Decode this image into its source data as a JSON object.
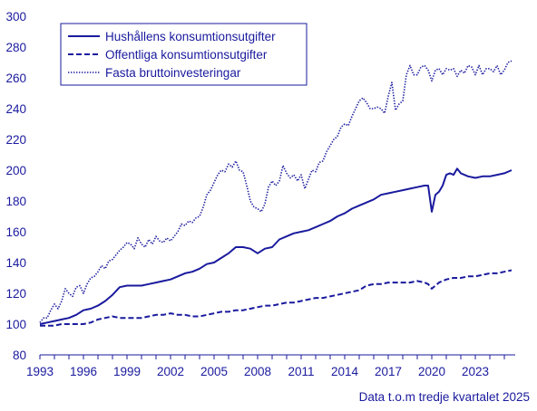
{
  "colors": {
    "series": "#1a1a9e",
    "axis": "#1a1a9e",
    "gridline": "#e6e6e6",
    "legend_border": "#1a1a9e"
  },
  "footnote": "Data t.o.m tredje kvartalet 2025",
  "chart_data": {
    "type": "line",
    "title": "",
    "xlabel": "",
    "ylabel": "",
    "xlim": [
      1993.0,
      2025.75
    ],
    "ylim": [
      80,
      300
    ],
    "y_ticks": [
      80,
      100,
      120,
      140,
      160,
      180,
      200,
      220,
      240,
      260,
      280,
      300
    ],
    "x_ticks": [
      1993,
      1996,
      1999,
      2002,
      2005,
      2008,
      2011,
      2014,
      2017,
      2020,
      2023
    ],
    "grid": false,
    "legend_position": "top-left",
    "series": [
      {
        "name": "Hushållens konsumtionsutgifter",
        "style": "solid",
        "points": [
          [
            1993.0,
            100
          ],
          [
            1993.5,
            101
          ],
          [
            1994.0,
            102
          ],
          [
            1994.5,
            103
          ],
          [
            1995.0,
            104
          ],
          [
            1995.5,
            106
          ],
          [
            1996.0,
            109
          ],
          [
            1996.5,
            110
          ],
          [
            1997.0,
            112
          ],
          [
            1997.5,
            115
          ],
          [
            1998.0,
            119
          ],
          [
            1998.5,
            124
          ],
          [
            1999.0,
            125
          ],
          [
            1999.5,
            125
          ],
          [
            2000.0,
            125
          ],
          [
            2000.5,
            126
          ],
          [
            2001.0,
            127
          ],
          [
            2001.5,
            128
          ],
          [
            2002.0,
            129
          ],
          [
            2002.5,
            131
          ],
          [
            2003.0,
            133
          ],
          [
            2003.5,
            134
          ],
          [
            2004.0,
            136
          ],
          [
            2004.5,
            139
          ],
          [
            2005.0,
            140
          ],
          [
            2005.5,
            143
          ],
          [
            2006.0,
            146
          ],
          [
            2006.5,
            150
          ],
          [
            2007.0,
            150
          ],
          [
            2007.5,
            149
          ],
          [
            2008.0,
            146
          ],
          [
            2008.5,
            149
          ],
          [
            2009.0,
            150
          ],
          [
            2009.5,
            155
          ],
          [
            2010.0,
            157
          ],
          [
            2010.5,
            159
          ],
          [
            2011.0,
            160
          ],
          [
            2011.5,
            161
          ],
          [
            2012.0,
            163
          ],
          [
            2012.5,
            165
          ],
          [
            2013.0,
            167
          ],
          [
            2013.5,
            170
          ],
          [
            2014.0,
            172
          ],
          [
            2014.5,
            175
          ],
          [
            2015.0,
            177
          ],
          [
            2015.5,
            179
          ],
          [
            2016.0,
            181
          ],
          [
            2016.5,
            184
          ],
          [
            2017.0,
            185
          ],
          [
            2017.5,
            186
          ],
          [
            2018.0,
            187
          ],
          [
            2018.5,
            188
          ],
          [
            2019.0,
            189
          ],
          [
            2019.5,
            190
          ],
          [
            2019.75,
            190
          ],
          [
            2020.0,
            173
          ],
          [
            2020.25,
            184
          ],
          [
            2020.5,
            186
          ],
          [
            2020.75,
            190
          ],
          [
            2021.0,
            197
          ],
          [
            2021.25,
            198
          ],
          [
            2021.5,
            197
          ],
          [
            2021.75,
            201
          ],
          [
            2022.0,
            198
          ],
          [
            2022.5,
            196
          ],
          [
            2023.0,
            195
          ],
          [
            2023.5,
            196
          ],
          [
            2024.0,
            196
          ],
          [
            2024.5,
            197
          ],
          [
            2025.0,
            198
          ],
          [
            2025.5,
            200
          ]
        ]
      },
      {
        "name": "Offentliga konsumtionsutgifter",
        "style": "dashed",
        "points": [
          [
            1993.0,
            99
          ],
          [
            1993.5,
            99
          ],
          [
            1994.0,
            99
          ],
          [
            1994.5,
            100
          ],
          [
            1995.0,
            100
          ],
          [
            1995.5,
            100
          ],
          [
            1996.0,
            100
          ],
          [
            1996.5,
            101
          ],
          [
            1997.0,
            103
          ],
          [
            1997.5,
            104
          ],
          [
            1998.0,
            105
          ],
          [
            1998.5,
            104
          ],
          [
            1999.0,
            104
          ],
          [
            1999.5,
            104
          ],
          [
            2000.0,
            104
          ],
          [
            2000.5,
            105
          ],
          [
            2001.0,
            106
          ],
          [
            2001.5,
            106
          ],
          [
            2002.0,
            107
          ],
          [
            2002.5,
            106
          ],
          [
            2003.0,
            106
          ],
          [
            2003.5,
            105
          ],
          [
            2004.0,
            105
          ],
          [
            2004.5,
            106
          ],
          [
            2005.0,
            107
          ],
          [
            2005.5,
            108
          ],
          [
            2006.0,
            108
          ],
          [
            2006.5,
            109
          ],
          [
            2007.0,
            109
          ],
          [
            2007.5,
            110
          ],
          [
            2008.0,
            111
          ],
          [
            2008.5,
            112
          ],
          [
            2009.0,
            112
          ],
          [
            2009.5,
            113
          ],
          [
            2010.0,
            114
          ],
          [
            2010.5,
            114
          ],
          [
            2011.0,
            115
          ],
          [
            2011.5,
            116
          ],
          [
            2012.0,
            117
          ],
          [
            2012.5,
            117
          ],
          [
            2013.0,
            118
          ],
          [
            2013.5,
            119
          ],
          [
            2014.0,
            120
          ],
          [
            2014.5,
            121
          ],
          [
            2015.0,
            122
          ],
          [
            2015.5,
            125
          ],
          [
            2016.0,
            126
          ],
          [
            2016.5,
            126
          ],
          [
            2017.0,
            127
          ],
          [
            2017.5,
            127
          ],
          [
            2018.0,
            127
          ],
          [
            2018.5,
            127
          ],
          [
            2019.0,
            128
          ],
          [
            2019.5,
            127
          ],
          [
            2019.75,
            126
          ],
          [
            2020.0,
            123
          ],
          [
            2020.5,
            127
          ],
          [
            2021.0,
            129
          ],
          [
            2021.5,
            130
          ],
          [
            2022.0,
            130
          ],
          [
            2022.5,
            131
          ],
          [
            2023.0,
            131
          ],
          [
            2023.5,
            132
          ],
          [
            2024.0,
            133
          ],
          [
            2024.5,
            133
          ],
          [
            2025.0,
            134
          ],
          [
            2025.5,
            135
          ]
        ]
      },
      {
        "name": "Fasta bruttoinvesteringar",
        "style": "dotted",
        "points": [
          [
            1993.0,
            101
          ],
          [
            1993.25,
            104
          ],
          [
            1993.5,
            104
          ],
          [
            1993.75,
            109
          ],
          [
            1994.0,
            113
          ],
          [
            1994.25,
            110
          ],
          [
            1994.5,
            115
          ],
          [
            1994.75,
            123
          ],
          [
            1995.0,
            120
          ],
          [
            1995.25,
            118
          ],
          [
            1995.5,
            124
          ],
          [
            1995.75,
            125
          ],
          [
            1996.0,
            120
          ],
          [
            1996.25,
            126
          ],
          [
            1996.5,
            130
          ],
          [
            1996.75,
            131
          ],
          [
            1997.0,
            134
          ],
          [
            1997.25,
            138
          ],
          [
            1997.5,
            136
          ],
          [
            1997.75,
            141
          ],
          [
            1998.0,
            142
          ],
          [
            1998.25,
            145
          ],
          [
            1998.5,
            148
          ],
          [
            1998.75,
            150
          ],
          [
            1999.0,
            153
          ],
          [
            1999.25,
            152
          ],
          [
            1999.5,
            149
          ],
          [
            1999.75,
            156
          ],
          [
            2000.0,
            152
          ],
          [
            2000.25,
            150
          ],
          [
            2000.5,
            155
          ],
          [
            2000.75,
            152
          ],
          [
            2001.0,
            157
          ],
          [
            2001.25,
            154
          ],
          [
            2001.5,
            153
          ],
          [
            2001.75,
            156
          ],
          [
            2002.0,
            154
          ],
          [
            2002.25,
            157
          ],
          [
            2002.5,
            160
          ],
          [
            2002.75,
            165
          ],
          [
            2003.0,
            164
          ],
          [
            2003.25,
            167
          ],
          [
            2003.5,
            166
          ],
          [
            2003.75,
            169
          ],
          [
            2004.0,
            170
          ],
          [
            2004.25,
            176
          ],
          [
            2004.5,
            184
          ],
          [
            2004.75,
            187
          ],
          [
            2005.0,
            192
          ],
          [
            2005.25,
            197
          ],
          [
            2005.5,
            200
          ],
          [
            2005.75,
            199
          ],
          [
            2006.0,
            204
          ],
          [
            2006.25,
            202
          ],
          [
            2006.5,
            206
          ],
          [
            2006.75,
            200
          ],
          [
            2007.0,
            199
          ],
          [
            2007.25,
            190
          ],
          [
            2007.5,
            180
          ],
          [
            2007.75,
            176
          ],
          [
            2008.0,
            175
          ],
          [
            2008.25,
            173
          ],
          [
            2008.5,
            178
          ],
          [
            2008.75,
            189
          ],
          [
            2009.0,
            193
          ],
          [
            2009.25,
            190
          ],
          [
            2009.5,
            193
          ],
          [
            2009.75,
            203
          ],
          [
            2010.0,
            198
          ],
          [
            2010.25,
            195
          ],
          [
            2010.5,
            197
          ],
          [
            2010.75,
            193
          ],
          [
            2011.0,
            197
          ],
          [
            2011.25,
            188
          ],
          [
            2011.5,
            194
          ],
          [
            2011.75,
            200
          ],
          [
            2012.0,
            199
          ],
          [
            2012.25,
            205
          ],
          [
            2012.5,
            206
          ],
          [
            2012.75,
            212
          ],
          [
            2013.0,
            216
          ],
          [
            2013.25,
            220
          ],
          [
            2013.5,
            222
          ],
          [
            2013.75,
            228
          ],
          [
            2014.0,
            230
          ],
          [
            2014.25,
            229
          ],
          [
            2014.5,
            235
          ],
          [
            2014.75,
            240
          ],
          [
            2015.0,
            245
          ],
          [
            2015.25,
            247
          ],
          [
            2015.5,
            244
          ],
          [
            2015.75,
            240
          ],
          [
            2016.0,
            240
          ],
          [
            2016.25,
            241
          ],
          [
            2016.5,
            240
          ],
          [
            2016.75,
            237
          ],
          [
            2017.0,
            248
          ],
          [
            2017.25,
            257
          ],
          [
            2017.5,
            239
          ],
          [
            2017.75,
            243
          ],
          [
            2018.0,
            245
          ],
          [
            2018.25,
            262
          ],
          [
            2018.5,
            268
          ],
          [
            2018.75,
            262
          ],
          [
            2019.0,
            262
          ],
          [
            2019.25,
            267
          ],
          [
            2019.5,
            268
          ],
          [
            2019.75,
            265
          ],
          [
            2020.0,
            258
          ],
          [
            2020.25,
            265
          ],
          [
            2020.5,
            266
          ],
          [
            2020.75,
            262
          ],
          [
            2021.0,
            266
          ],
          [
            2021.25,
            265
          ],
          [
            2021.5,
            266
          ],
          [
            2021.75,
            261
          ],
          [
            2022.0,
            265
          ],
          [
            2022.25,
            263
          ],
          [
            2022.5,
            268
          ],
          [
            2022.75,
            267
          ],
          [
            2023.0,
            262
          ],
          [
            2023.25,
            268
          ],
          [
            2023.5,
            262
          ],
          [
            2023.75,
            266
          ],
          [
            2024.0,
            266
          ],
          [
            2024.25,
            264
          ],
          [
            2024.5,
            268
          ],
          [
            2024.75,
            262
          ],
          [
            2025.0,
            265
          ],
          [
            2025.25,
            270
          ],
          [
            2025.5,
            271
          ]
        ]
      }
    ]
  }
}
